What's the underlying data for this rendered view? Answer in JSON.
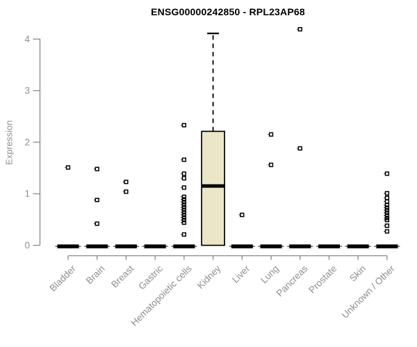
{
  "title": "ENSG00000242850 - RPL23AP68",
  "colors": {
    "title_text": "#000000",
    "axis_line": "#888888",
    "tick_text": "#8e8e8e",
    "box_fill": "#ece6c9",
    "box_stroke": "#000000",
    "median_stroke": "#000000",
    "outlier_stroke": "#000000",
    "background": "#ffffff"
  },
  "chart_data": {
    "type": "boxplot",
    "title": "ENSG00000242850 - RPL23AP68",
    "xlabel": "",
    "ylabel": "Expression",
    "ylim": [
      0,
      4
    ],
    "yticks": [
      0,
      1,
      2,
      3,
      4
    ],
    "grid": false,
    "legend": null,
    "categories": [
      "Bladder",
      "Brain",
      "Breast",
      "Gastric",
      "Hematopoietic cells",
      "Kidney",
      "Liver",
      "Lung",
      "Pancreas",
      "Prostate",
      "Skin",
      "Unknown / Other"
    ],
    "series": [
      {
        "name": "Bladder",
        "whisker_low": 0,
        "q1": 0,
        "median": 0,
        "q3": 0,
        "whisker_high": 0,
        "outliers": [
          1.51
        ]
      },
      {
        "name": "Brain",
        "whisker_low": 0,
        "q1": 0,
        "median": 0,
        "q3": 0,
        "whisker_high": 0,
        "outliers": [
          1.48,
          0.88,
          0.42
        ]
      },
      {
        "name": "Breast",
        "whisker_low": 0,
        "q1": 0,
        "median": 0,
        "q3": 0,
        "whisker_high": 0,
        "outliers": [
          1.23,
          1.04
        ]
      },
      {
        "name": "Gastric",
        "whisker_low": 0,
        "q1": 0,
        "median": 0,
        "q3": 0,
        "whisker_high": 0,
        "outliers": []
      },
      {
        "name": "Hematopoietic cells",
        "whisker_low": 0,
        "q1": 0,
        "median": 0,
        "q3": 0,
        "whisker_high": 0,
        "outliers": [
          2.33,
          1.66,
          1.39,
          1.3,
          1.12,
          0.94,
          0.89,
          0.84,
          0.79,
          0.74,
          0.69,
          0.64,
          0.59,
          0.54,
          0.49,
          0.44,
          0.21
        ]
      },
      {
        "name": "Kidney",
        "whisker_low": 0,
        "q1": 0,
        "median": 1.15,
        "q3": 2.21,
        "whisker_high": 4.11,
        "outliers": []
      },
      {
        "name": "Liver",
        "whisker_low": 0,
        "q1": 0,
        "median": 0,
        "q3": 0,
        "whisker_high": 0,
        "outliers": [
          0.59
        ]
      },
      {
        "name": "Lung",
        "whisker_low": 0,
        "q1": 0,
        "median": 0,
        "q3": 0,
        "whisker_high": 0,
        "outliers": [
          2.15,
          1.56
        ]
      },
      {
        "name": "Pancreas",
        "whisker_low": 0,
        "q1": 0,
        "median": 0,
        "q3": 0,
        "whisker_high": 0,
        "outliers": [
          4.19,
          1.88
        ]
      },
      {
        "name": "Prostate",
        "whisker_low": 0,
        "q1": 0,
        "median": 0,
        "q3": 0,
        "whisker_high": 0,
        "outliers": []
      },
      {
        "name": "Skin",
        "whisker_low": 0,
        "q1": 0,
        "median": 0,
        "q3": 0,
        "whisker_high": 0,
        "outliers": []
      },
      {
        "name": "Unknown / Other",
        "whisker_low": 0,
        "q1": 0,
        "median": 0,
        "q3": 0,
        "whisker_high": 0,
        "outliers": [
          1.39,
          1.01,
          0.92,
          0.85,
          0.78,
          0.73,
          0.68,
          0.63,
          0.58,
          0.53,
          0.49,
          0.38,
          0.27
        ]
      }
    ]
  }
}
